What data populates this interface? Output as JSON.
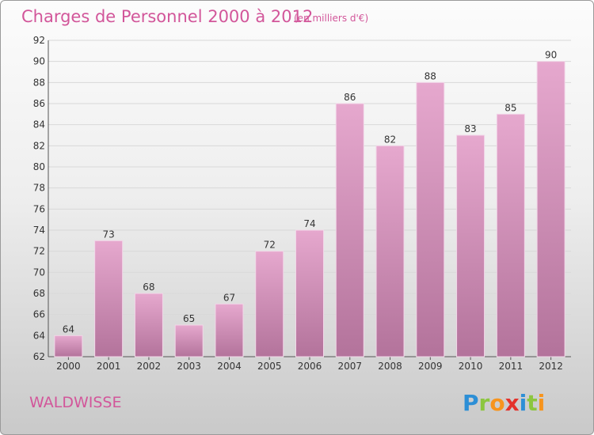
{
  "title": "Charges de Personnel 2000 à 2012",
  "subtitle": "(en milliers d'€)",
  "place": "WALDWISSE",
  "brand": {
    "text": "Proxiti",
    "letters": [
      {
        "ch": "P",
        "color": "#2d8fd6"
      },
      {
        "ch": "r",
        "color": "#8cc63f"
      },
      {
        "ch": "o",
        "color": "#f7941d"
      },
      {
        "ch": "x",
        "color": "#e4322b"
      },
      {
        "ch": "i",
        "color": "#2d8fd6"
      },
      {
        "ch": "t",
        "color": "#8cc63f"
      },
      {
        "ch": "i",
        "color": "#f7941d"
      }
    ]
  },
  "colors": {
    "bar_top": "#e6a8ce",
    "bar_bottom": "#b3739b",
    "title": "#d2569a",
    "grid": "#d8d8d8"
  },
  "chart_data": {
    "type": "bar",
    "categories": [
      "2000",
      "2001",
      "2002",
      "2003",
      "2004",
      "2005",
      "2006",
      "2007",
      "2008",
      "2009",
      "2010",
      "2011",
      "2012"
    ],
    "values": [
      64,
      73,
      68,
      65,
      67,
      72,
      74,
      86,
      82,
      88,
      83,
      85,
      90
    ],
    "ylim": [
      62,
      92
    ],
    "yticks": [
      62,
      64,
      66,
      68,
      70,
      72,
      74,
      76,
      78,
      80,
      82,
      84,
      86,
      88,
      90,
      92
    ],
    "grid": true,
    "data_labels": true
  }
}
